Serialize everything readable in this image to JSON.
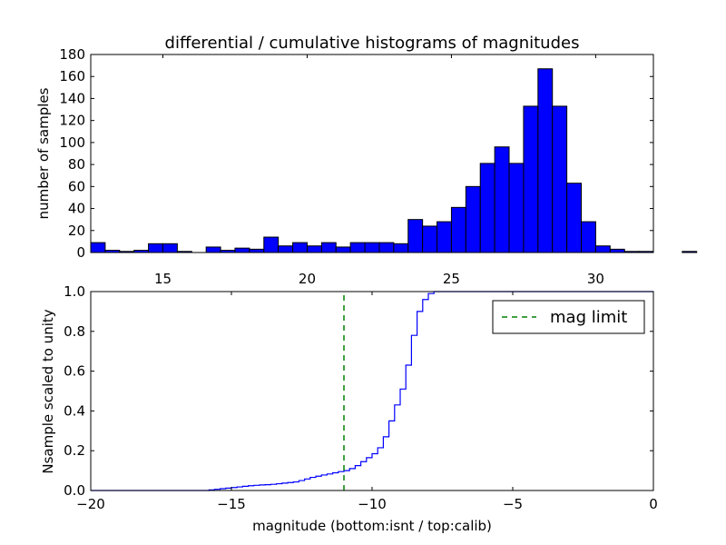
{
  "chart_data": [
    {
      "type": "bar",
      "title": "differential / cumulative histograms of magnitudes",
      "xlabel": "",
      "ylabel": "number of samples",
      "xlim": [
        12.5,
        32.0
      ],
      "ylim": [
        0,
        180
      ],
      "xticks": [
        15,
        20,
        25,
        30
      ],
      "yticks": [
        0,
        20,
        40,
        60,
        80,
        100,
        120,
        140,
        160,
        180
      ],
      "bin_start": 12.5,
      "bin_width": 0.5,
      "values": [
        9,
        2,
        1,
        2,
        8,
        8,
        1,
        0,
        5,
        2,
        4,
        3,
        14,
        6,
        9,
        6,
        9,
        5,
        9,
        9,
        9,
        8,
        30,
        24,
        28,
        41,
        60,
        81,
        96,
        81,
        133,
        167,
        133,
        63,
        28,
        6,
        3,
        1,
        1,
        0,
        0,
        1,
        0,
        0,
        0,
        0,
        0,
        0,
        0
      ],
      "bar_color": "#0000ff",
      "grid": false
    },
    {
      "type": "line",
      "style": "step",
      "xlabel": "magnitude (bottom:isnt / top:calib)",
      "ylabel": "Nsample scaled to unity",
      "xlim": [
        -20,
        0
      ],
      "ylim": [
        0.0,
        1.0
      ],
      "xticks": [
        -20,
        -15,
        -10,
        -5,
        0
      ],
      "yticks": [
        0.0,
        0.2,
        0.4,
        0.6,
        0.8,
        1.0
      ],
      "grid": false,
      "legend_position": "top-right",
      "series": [
        {
          "name": "",
          "color": "#0000ff",
          "x": [
            -20.0,
            -15.8,
            -15.6,
            -15.4,
            -15.2,
            -15.0,
            -14.8,
            -14.6,
            -14.4,
            -14.2,
            -14.0,
            -13.8,
            -13.6,
            -13.4,
            -13.2,
            -13.0,
            -12.8,
            -12.6,
            -12.4,
            -12.2,
            -12.0,
            -11.8,
            -11.6,
            -11.4,
            -11.2,
            -11.0,
            -10.8,
            -10.6,
            -10.4,
            -10.2,
            -10.0,
            -9.8,
            -9.6,
            -9.4,
            -9.2,
            -9.0,
            -8.8,
            -8.6,
            -8.4,
            -8.2,
            -8.0,
            -7.8,
            -7.6,
            -7.4,
            -7.2,
            -7.0,
            0.0
          ],
          "y": [
            0.0,
            0.003,
            0.006,
            0.009,
            0.012,
            0.015,
            0.018,
            0.021,
            0.024,
            0.026,
            0.028,
            0.029,
            0.031,
            0.034,
            0.037,
            0.04,
            0.043,
            0.05,
            0.058,
            0.066,
            0.072,
            0.078,
            0.083,
            0.089,
            0.095,
            0.1,
            0.11,
            0.125,
            0.145,
            0.165,
            0.185,
            0.215,
            0.27,
            0.35,
            0.43,
            0.51,
            0.63,
            0.78,
            0.9,
            0.96,
            0.99,
            1.0,
            1.0,
            1.0,
            1.0,
            1.0,
            1.0
          ]
        },
        {
          "name": "mag limit",
          "color": "#008000",
          "dash": "dashed",
          "x": [
            -11.0,
            -11.0
          ],
          "y": [
            0.0,
            1.0
          ]
        }
      ]
    }
  ]
}
